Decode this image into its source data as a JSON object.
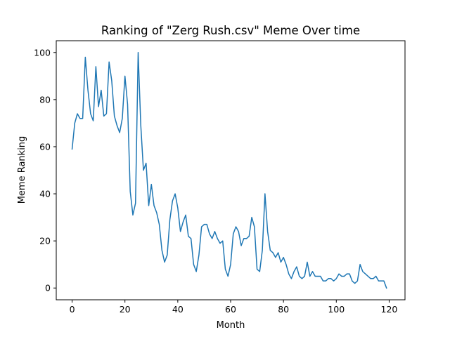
{
  "chart_data": {
    "type": "line",
    "title": "Ranking of \"Zerg Rush.csv\" Meme Over time",
    "xlabel": "Month",
    "ylabel": "Meme Ranking",
    "xlim": [
      -6,
      126
    ],
    "ylim": [
      -5,
      105
    ],
    "xticks": [
      0,
      20,
      40,
      60,
      80,
      100,
      120
    ],
    "yticks": [
      0,
      20,
      40,
      60,
      80,
      100
    ],
    "grid": false,
    "series": [
      {
        "color": "#1f77b4",
        "x": [
          0,
          1,
          2,
          3,
          4,
          5,
          6,
          7,
          8,
          9,
          10,
          11,
          12,
          13,
          14,
          15,
          16,
          17,
          18,
          19,
          20,
          21,
          22,
          23,
          24,
          25,
          26,
          27,
          28,
          29,
          30,
          31,
          32,
          33,
          34,
          35,
          36,
          37,
          38,
          39,
          40,
          41,
          42,
          43,
          44,
          45,
          46,
          47,
          48,
          49,
          50,
          51,
          52,
          53,
          54,
          55,
          56,
          57,
          58,
          59,
          60,
          61,
          62,
          63,
          64,
          65,
          66,
          67,
          68,
          69,
          70,
          71,
          72,
          73,
          74,
          75,
          76,
          77,
          78,
          79,
          80,
          81,
          82,
          83,
          84,
          85,
          86,
          87,
          88,
          89,
          90,
          91,
          92,
          93,
          94,
          95,
          96,
          97,
          98,
          99,
          100,
          101,
          102,
          103,
          104,
          105,
          106,
          107,
          108,
          109,
          110,
          111,
          112,
          113,
          114,
          115,
          116,
          117,
          118,
          119
        ],
        "values": [
          59,
          70,
          74,
          72,
          72,
          98,
          84,
          74,
          71,
          94,
          77,
          84,
          73,
          74,
          96,
          88,
          73,
          69,
          66,
          72,
          90,
          78,
          41,
          31,
          36,
          100,
          69,
          50,
          53,
          35,
          44,
          35,
          32,
          27,
          16,
          11,
          14,
          29,
          37,
          40,
          34,
          24,
          28,
          31,
          22,
          21,
          10,
          7,
          14,
          26,
          27,
          27,
          23,
          21,
          24,
          21,
          19,
          20,
          8,
          5,
          10,
          23,
          26,
          24,
          18,
          21,
          21,
          22,
          30,
          26,
          8,
          7,
          16,
          40,
          24,
          16,
          15,
          13,
          15,
          11,
          13,
          10,
          6,
          4,
          7,
          9,
          5,
          4,
          5,
          11,
          5,
          7,
          5,
          5,
          5,
          3,
          3,
          4,
          4,
          3,
          4,
          6,
          5,
          5,
          6,
          6,
          3,
          2,
          3,
          10,
          7,
          6,
          5,
          4,
          4,
          5,
          3,
          3,
          3,
          0
        ]
      }
    ]
  }
}
